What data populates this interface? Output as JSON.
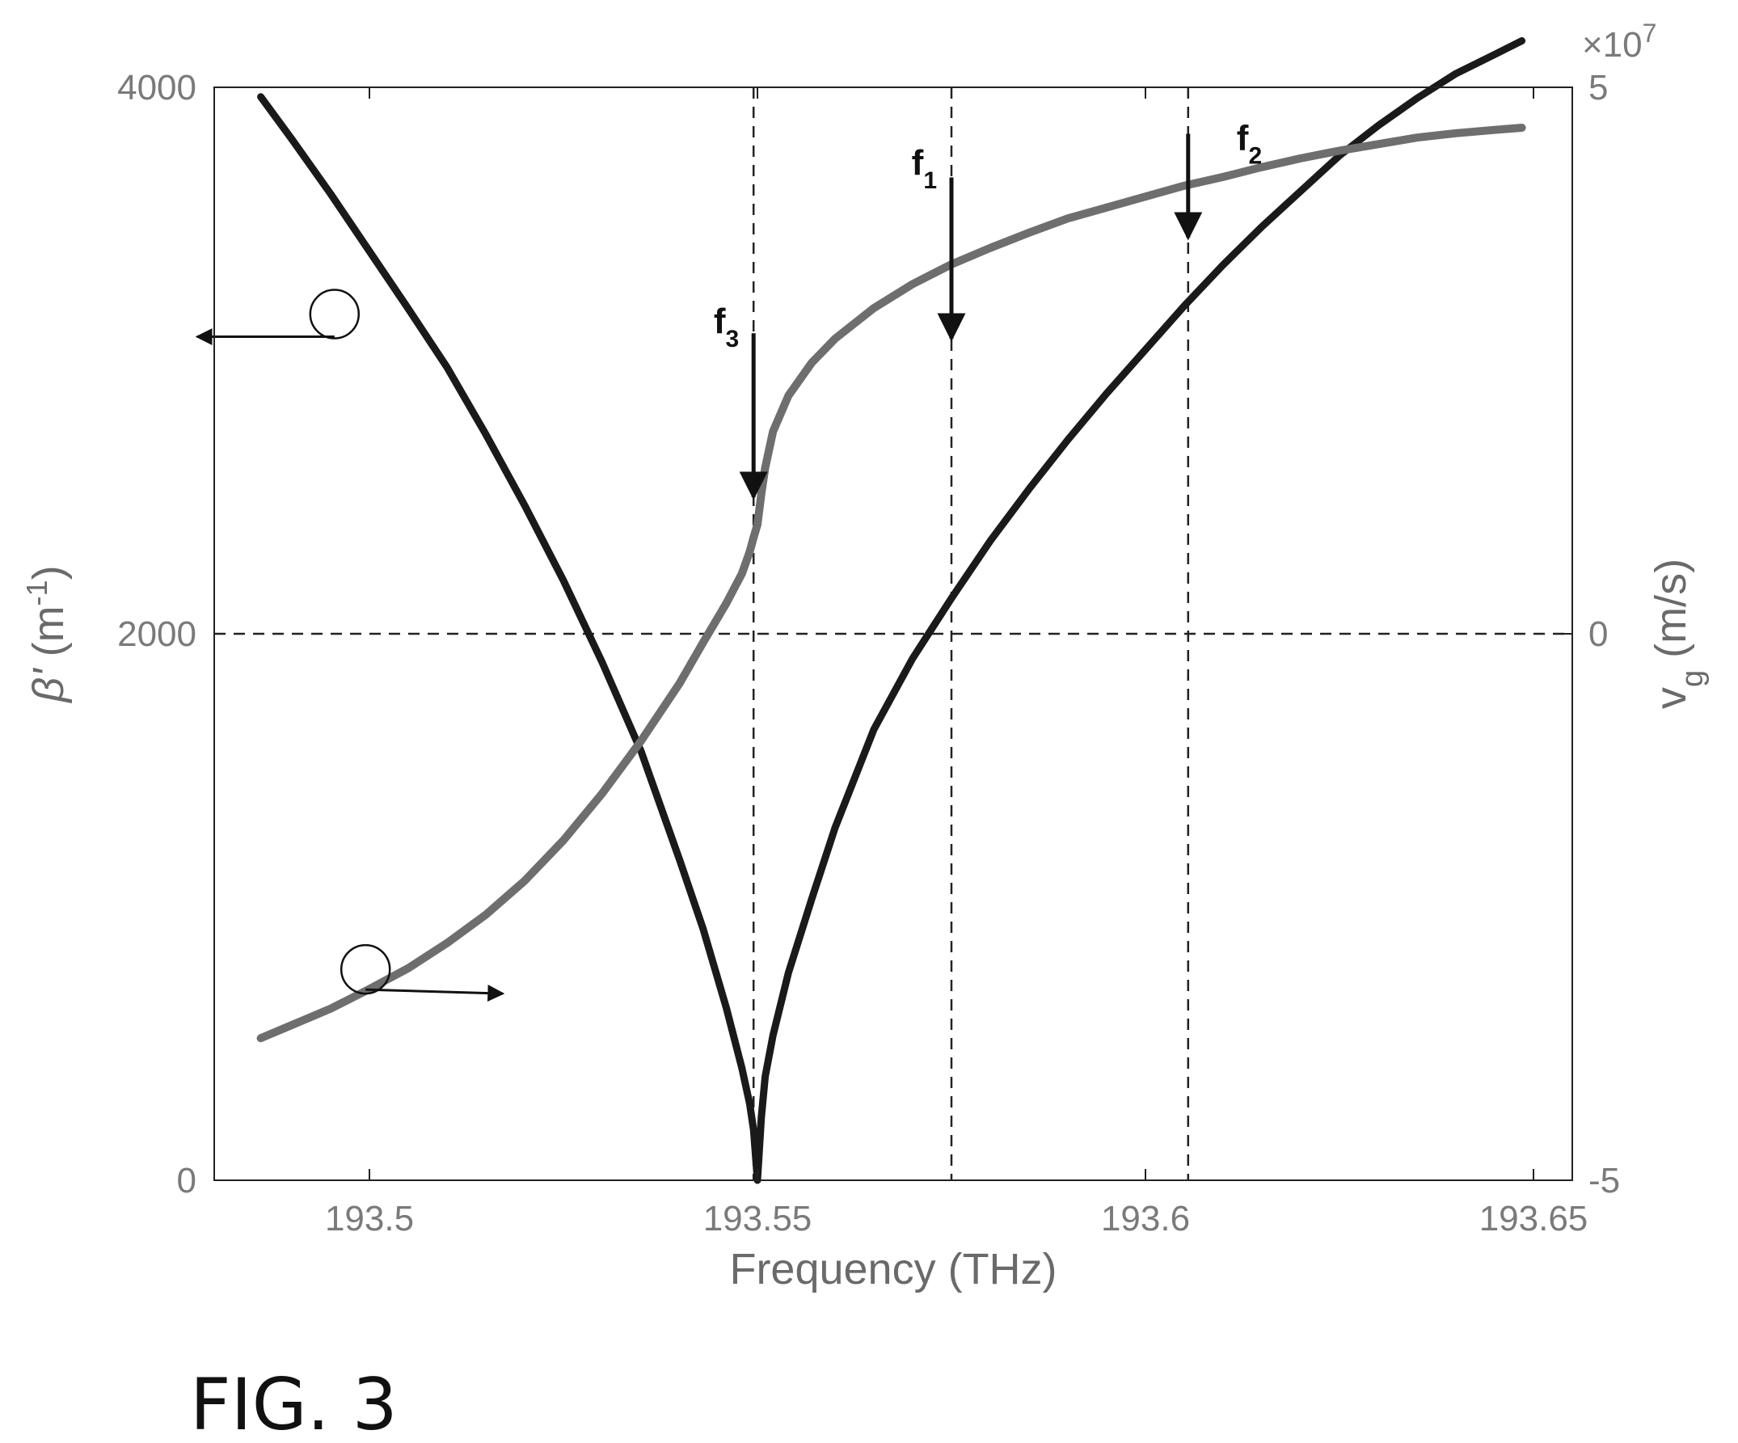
{
  "chart_data": {
    "type": "line",
    "title": "",
    "xlabel": "Frequency (THz)",
    "xlim": [
      193.48,
      193.655
    ],
    "xticks": [
      193.5,
      193.55,
      193.6,
      193.65
    ],
    "xtick_labels": [
      "193.5",
      "193.55",
      "193.6",
      "193.65"
    ],
    "y_left": {
      "label_symbol": "β'",
      "label_rest": " (m",
      "label_sup": "-1",
      "label_close": ")",
      "lim": [
        0,
        4000
      ],
      "ticks": [
        0,
        2000,
        4000
      ],
      "tick_labels": [
        "0",
        "2000",
        "4000"
      ]
    },
    "y_right": {
      "label_main": "v",
      "label_sub": "g",
      "label_rest": " (m/s)",
      "lim": [
        -5,
        5
      ],
      "ticks": [
        -5,
        0,
        5
      ],
      "tick_labels": [
        "-5",
        "0",
        "5"
      ],
      "exponent_mult": "×10",
      "exponent_power": "7"
    },
    "series": [
      {
        "axis": "left",
        "color": "#1a1a1a",
        "x": [
          193.486,
          193.49,
          193.495,
          193.5,
          193.505,
          193.51,
          193.515,
          193.52,
          193.525,
          193.53,
          193.535,
          193.54,
          193.543,
          193.546,
          193.548,
          193.549,
          193.5495,
          193.55,
          193.5505,
          193.551,
          193.552,
          193.554,
          193.557,
          193.56,
          193.565,
          193.57,
          193.575,
          193.58,
          193.585,
          193.59,
          193.595,
          193.6,
          193.605,
          193.61,
          193.615,
          193.62,
          193.625,
          193.63,
          193.635,
          193.64,
          193.645,
          193.6485
        ],
        "y": [
          3965,
          3810,
          3610,
          3400,
          3190,
          2975,
          2730,
          2470,
          2195,
          1895,
          1570,
          1170,
          920,
          630,
          410,
          280,
          185,
          0,
          230,
          380,
          530,
          760,
          1030,
          1290,
          1650,
          1910,
          2130,
          2340,
          2530,
          2710,
          2880,
          3040,
          3200,
          3350,
          3490,
          3620,
          3750,
          3860,
          3960,
          4050,
          4120,
          4170
        ]
      },
      {
        "axis": "right",
        "color": "#6e6e6e",
        "x": [
          193.486,
          193.49,
          193.495,
          193.5,
          193.505,
          193.51,
          193.515,
          193.52,
          193.525,
          193.53,
          193.535,
          193.54,
          193.543,
          193.546,
          193.548,
          193.549,
          193.5495,
          193.55,
          193.5505,
          193.551,
          193.552,
          193.554,
          193.557,
          193.56,
          193.565,
          193.57,
          193.575,
          193.58,
          193.585,
          193.59,
          193.595,
          193.6,
          193.605,
          193.61,
          193.615,
          193.62,
          193.625,
          193.63,
          193.635,
          193.64,
          193.645,
          193.6485
        ],
        "y": [
          -3.7,
          -3.58,
          -3.43,
          -3.25,
          -3.06,
          -2.83,
          -2.57,
          -2.26,
          -1.89,
          -1.46,
          -0.98,
          -0.45,
          -0.08,
          0.28,
          0.55,
          0.75,
          0.88,
          1.0,
          1.28,
          1.52,
          1.85,
          2.18,
          2.48,
          2.7,
          2.98,
          3.2,
          3.38,
          3.53,
          3.67,
          3.8,
          3.9,
          4.0,
          4.1,
          4.18,
          4.27,
          4.35,
          4.42,
          4.48,
          4.54,
          4.58,
          4.61,
          4.63
        ]
      }
    ],
    "reference_lines": {
      "vertical_x": [
        193.5495,
        193.575,
        193.6055
      ],
      "horizontal_left_y": 2000
    },
    "markers": [
      {
        "main": "f",
        "sub": "3",
        "x": 193.5495,
        "y_left_tip": 2500,
        "y_left_top": 3100,
        "label_left_y": 3100
      },
      {
        "main": "f",
        "sub": "1",
        "x": 193.575,
        "y_left_tip": 3080,
        "y_left_top": 3670,
        "label_left_y": 3680
      },
      {
        "main": "f",
        "sub": "2",
        "x": 193.6055,
        "y_left_tip": 3450,
        "y_left_top": 3830,
        "label_left_y": 3770
      }
    ],
    "axis_indicators": [
      {
        "series": "left",
        "x": 193.4955,
        "y_left": 3170,
        "direction": "left"
      },
      {
        "series": "right",
        "x": 193.4995,
        "y_right": -3.07,
        "direction": "right"
      }
    ],
    "grid": false,
    "legend": "none"
  },
  "figure": {
    "caption": "FIG. 3"
  }
}
